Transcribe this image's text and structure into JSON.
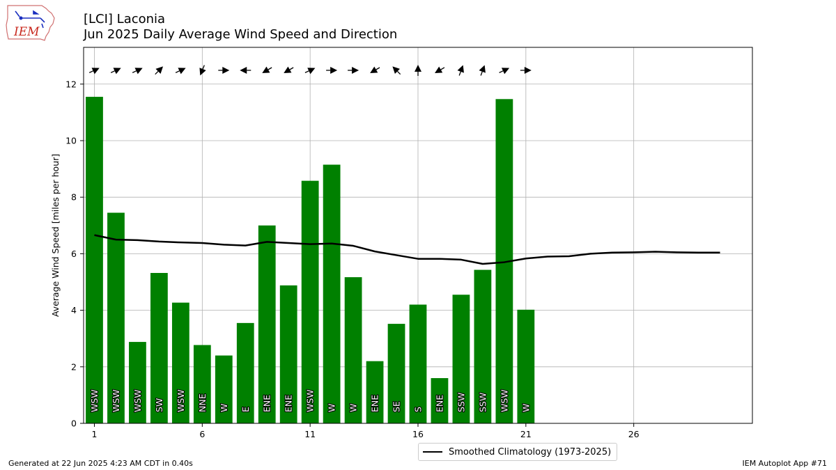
{
  "title": "[LCI] Laconia",
  "subtitle": "Jun 2025 Daily Average Wind Speed and Direction",
  "logo_text": "IEM",
  "footer_left": "Generated at 22 Jun 2025 4:23 AM CDT in 0.40s",
  "footer_right": "IEM Autoplot App #71",
  "colors": {
    "bar": "#008000",
    "climo_line": "#000000",
    "grid": "#b0b0b0"
  },
  "chart_data": {
    "type": "bar",
    "ylabel": "Average Wind Speed [miles per hour]",
    "xlim": [
      0.5,
      31.5
    ],
    "ylim": [
      0,
      13.3
    ],
    "x_ticks": [
      1,
      6,
      11,
      16,
      21,
      26
    ],
    "y_ticks": [
      0,
      2,
      4,
      6,
      8,
      10,
      12
    ],
    "grid": true,
    "legend_position": "bottom-center",
    "bars": {
      "days": [
        1,
        2,
        3,
        4,
        5,
        6,
        7,
        8,
        9,
        10,
        11,
        12,
        13,
        14,
        15,
        16,
        17,
        18,
        19,
        20,
        21
      ],
      "speed_mph": [
        11.55,
        7.45,
        2.88,
        5.32,
        4.27,
        2.77,
        2.4,
        3.55,
        7.0,
        4.88,
        8.58,
        9.15,
        5.17,
        2.2,
        3.52,
        4.2,
        1.6,
        4.55,
        5.43,
        11.47,
        4.02
      ],
      "direction_label": [
        "WSW",
        "WSW",
        "WSW",
        "SW",
        "WSW",
        "NNE",
        "W",
        "E",
        "ENE",
        "ENE",
        "WSW",
        "W",
        "W",
        "ENE",
        "SE",
        "S",
        "ENE",
        "SSW",
        "SSW",
        "WSW",
        "W"
      ],
      "direction_deg": [
        245,
        245,
        245,
        225,
        245,
        22,
        270,
        90,
        60,
        60,
        245,
        270,
        270,
        60,
        135,
        180,
        60,
        200,
        200,
        245,
        270
      ]
    },
    "series": [
      {
        "name": "Smoothed Climatology (1973-2025)",
        "type": "line",
        "x": [
          1,
          2,
          3,
          4,
          5,
          6,
          7,
          8,
          9,
          10,
          11,
          12,
          13,
          14,
          15,
          16,
          17,
          18,
          19,
          20,
          21,
          22,
          23,
          24,
          25,
          26,
          27,
          28,
          29,
          30
        ],
        "y": [
          6.66,
          6.5,
          6.48,
          6.43,
          6.4,
          6.38,
          6.32,
          6.29,
          6.42,
          6.38,
          6.34,
          6.36,
          6.28,
          6.08,
          5.95,
          5.82,
          5.82,
          5.79,
          5.64,
          5.7,
          5.83,
          5.9,
          5.91,
          6.0,
          6.04,
          6.05,
          6.07,
          6.05,
          6.04,
          6.04
        ]
      }
    ]
  }
}
